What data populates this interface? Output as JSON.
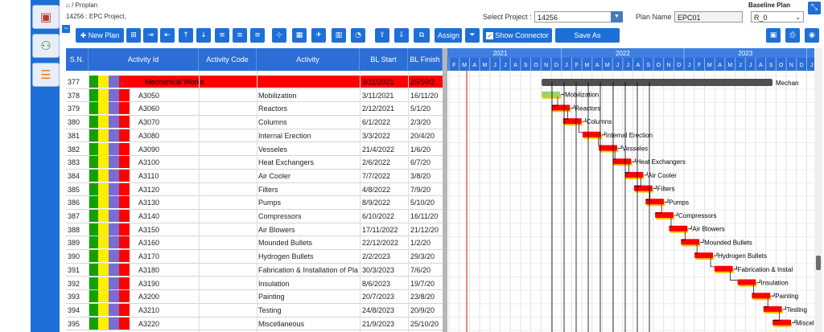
{
  "breadcrumb": "/ Proplan",
  "project_header": "14256 : EPC Project,",
  "select_project_label": "Select Project :",
  "select_project_value": "14256",
  "plan_name_label": "Plan Name :",
  "plan_name_value": "EPC01",
  "baseline_title": "Baseline Plan",
  "baseline_value": "R_0",
  "toolbar": {
    "new_plan": "New Plan",
    "assign": "Assign",
    "show_connector": "Show Connector",
    "save_milestone": "Save As Milestone"
  },
  "columns": [
    "S.N.",
    "Activity Id",
    "Activity Code",
    "Activity",
    "BL Start",
    "BL Finish"
  ],
  "summary_row": {
    "sn": "377",
    "name": "Mechanical Works",
    "start": "3/11/2021",
    "finish": "25/10/2",
    "gantt_label": "Mechan"
  },
  "rows": [
    {
      "sn": "378",
      "id": "A3050",
      "name": "Mobilization",
      "start": "3/11/2021",
      "finish": "16/11/20"
    },
    {
      "sn": "379",
      "id": "A3060",
      "name": "Reactors",
      "start": "2/12/2021",
      "finish": "5/1/20"
    },
    {
      "sn": "380",
      "id": "A3070",
      "name": "Columns",
      "start": "6/1/2022",
      "finish": "2/3/20"
    },
    {
      "sn": "381",
      "id": "A3080",
      "name": "Internal Erection",
      "start": "3/3/2022",
      "finish": "20/4/20"
    },
    {
      "sn": "382",
      "id": "A3090",
      "name": "Vesseles",
      "start": "21/4/2022",
      "finish": "1/6/20"
    },
    {
      "sn": "383",
      "id": "A3100",
      "name": "Heat Exchangers",
      "start": "2/6/2022",
      "finish": "6/7/20"
    },
    {
      "sn": "384",
      "id": "A3110",
      "name": "Air Cooler",
      "start": "7/7/2022",
      "finish": "3/8/20"
    },
    {
      "sn": "385",
      "id": "A3120",
      "name": "Filters",
      "start": "4/8/2022",
      "finish": "7/9/20"
    },
    {
      "sn": "386",
      "id": "A3130",
      "name": "Pumps",
      "start": "8/9/2022",
      "finish": "5/10/20"
    },
    {
      "sn": "387",
      "id": "A3140",
      "name": "Compressors",
      "start": "6/10/2022",
      "finish": "16/11/20"
    },
    {
      "sn": "388",
      "id": "A3150",
      "name": "Air Blowers",
      "start": "17/11/2022",
      "finish": "21/12/20"
    },
    {
      "sn": "389",
      "id": "A3160",
      "name": "Mounded Bullets",
      "start": "22/12/2022",
      "finish": "1/2/20"
    },
    {
      "sn": "390",
      "id": "A3170",
      "name": "Hydrogen Bullets",
      "start": "2/2/2023",
      "finish": "29/3/20"
    },
    {
      "sn": "391",
      "id": "A3180",
      "name": "Fabrication & Installation of Pla",
      "gantt_label": "Fabrication & Instal",
      "start": "30/3/2023",
      "finish": "7/6/20"
    },
    {
      "sn": "392",
      "id": "A3190",
      "name": "Insulation",
      "start": "8/6/2023",
      "finish": "19/7/20"
    },
    {
      "sn": "393",
      "id": "A3200",
      "name": "Painting",
      "start": "20/7/2023",
      "finish": "23/8/20"
    },
    {
      "sn": "394",
      "id": "A3210",
      "name": "Testing",
      "start": "24/8/2023",
      "finish": "20/9/20"
    },
    {
      "sn": "395",
      "id": "A3220",
      "name": "Miscellaneous",
      "gantt_label": "Miscel",
      "start": "21/9/2023",
      "finish": "25/10/20"
    }
  ],
  "timeline": {
    "years": [
      "2021",
      "2022",
      "2023"
    ],
    "months": [
      "F",
      "M",
      "A",
      "M",
      "J",
      "J",
      "A",
      "S",
      "O",
      "N",
      "D",
      "J",
      "F",
      "M",
      "A",
      "M",
      "J",
      "J",
      "A",
      "S",
      "O",
      "N",
      "D",
      "J",
      "F",
      "M",
      "A",
      "M",
      "J",
      "J",
      "A",
      "S",
      "O",
      "N",
      "D",
      "J"
    ]
  },
  "colors": {
    "accent": "#2c6ed5",
    "summary": "#ff0000",
    "bar": "#ff0000",
    "baseline": "#f5c400",
    "today": "#e53935"
  }
}
